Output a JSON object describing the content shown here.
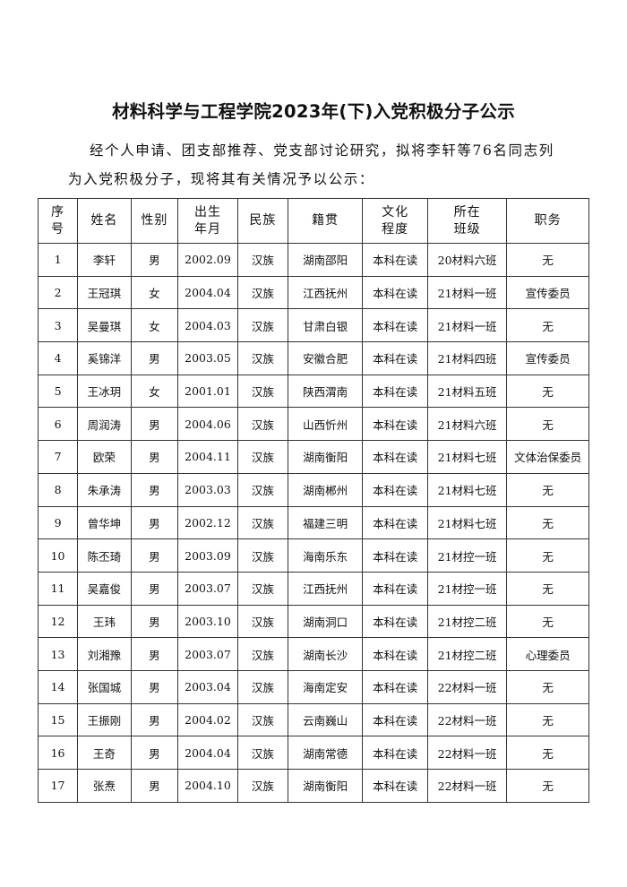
{
  "title": "材料科学与工程学院2023年(下)入党积极分子公示",
  "intro_line1": "经个人申请、团支部推荐、党支部讨论研究，拟将李轩等76名同志列",
  "intro_line2": "为入党积极分子，现将其有关情况予以公示：",
  "table": {
    "headers": [
      [
        "序",
        "号"
      ],
      [
        "姓名"
      ],
      [
        "性别"
      ],
      [
        "出生",
        "年月"
      ],
      [
        "民族"
      ],
      [
        "籍贯"
      ],
      [
        "文化",
        "程度"
      ],
      [
        "所在",
        "班级"
      ],
      [
        "职务"
      ]
    ],
    "rows": [
      [
        "1",
        "李轩",
        "男",
        "2002.09",
        "汉族",
        "湖南邵阳",
        "本科在读",
        "20材料六班",
        "无"
      ],
      [
        "2",
        "王冠琪",
        "女",
        "2004.04",
        "汉族",
        "江西抚州",
        "本科在读",
        "21材料一班",
        "宣传委员"
      ],
      [
        "3",
        "吴曼琪",
        "女",
        "2004.03",
        "汉族",
        "甘肃白银",
        "本科在读",
        "21材料一班",
        "无"
      ],
      [
        "4",
        "奚锦洋",
        "男",
        "2003.05",
        "汉族",
        "安徽合肥",
        "本科在读",
        "21材料四班",
        "宣传委员"
      ],
      [
        "5",
        "王冰玥",
        "女",
        "2001.01",
        "汉族",
        "陕西渭南",
        "本科在读",
        "21材料五班",
        "无"
      ],
      [
        "6",
        "周润涛",
        "男",
        "2004.06",
        "汉族",
        "山西忻州",
        "本科在读",
        "21材料六班",
        "无"
      ],
      [
        "7",
        "欧荣",
        "男",
        "2004.11",
        "汉族",
        "湖南衡阳",
        "本科在读",
        "21材料七班",
        "文体治保委员"
      ],
      [
        "8",
        "朱承涛",
        "男",
        "2003.03",
        "汉族",
        "湖南郴州",
        "本科在读",
        "21材料七班",
        "无"
      ],
      [
        "9",
        "曾华坤",
        "男",
        "2002.12",
        "汉族",
        "福建三明",
        "本科在读",
        "21材料七班",
        "无"
      ],
      [
        "10",
        "陈丕琦",
        "男",
        "2003.09",
        "汉族",
        "海南乐东",
        "本科在读",
        "21材控一班",
        "无"
      ],
      [
        "11",
        "吴嘉俊",
        "男",
        "2003.07",
        "汉族",
        "江西抚州",
        "本科在读",
        "21材控一班",
        "无"
      ],
      [
        "12",
        "王玮",
        "男",
        "2003.10",
        "汉族",
        "湖南洞口",
        "本科在读",
        "21材控二班",
        "无"
      ],
      [
        "13",
        "刘湘豫",
        "男",
        "2003.07",
        "汉族",
        "湖南长沙",
        "本科在读",
        "21材控二班",
        "心理委员"
      ],
      [
        "14",
        "张国城",
        "男",
        "2003.04",
        "汉族",
        "海南定安",
        "本科在读",
        "22材料一班",
        "无"
      ],
      [
        "15",
        "王振刚",
        "男",
        "2004.02",
        "汉族",
        "云南巍山",
        "本科在读",
        "22材料一班",
        "无"
      ],
      [
        "16",
        "王奇",
        "男",
        "2004.04",
        "汉族",
        "湖南常德",
        "本科在读",
        "22材料一班",
        "无"
      ],
      [
        "17",
        "张焘",
        "男",
        "2004.10",
        "汉族",
        "湖南衡阳",
        "本科在读",
        "22材料一班",
        "无"
      ]
    ]
  }
}
